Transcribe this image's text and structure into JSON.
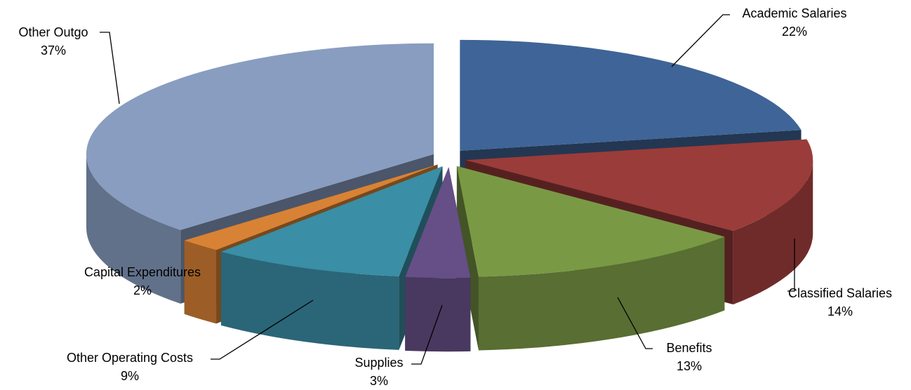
{
  "chart_data": {
    "type": "pie",
    "style": "3d-exploded",
    "title": "",
    "slices": [
      {
        "name": "Academic Salaries",
        "value": 22,
        "label": "22%",
        "color": "#3f6497"
      },
      {
        "name": "Classified Salaries",
        "value": 14,
        "label": "14%",
        "color": "#9a3c3a"
      },
      {
        "name": "Benefits",
        "value": 13,
        "label": "13%",
        "color": "#7a9945"
      },
      {
        "name": "Supplies",
        "value": 3,
        "label": "3%",
        "color": "#654f86"
      },
      {
        "name": "Other Operating Costs",
        "value": 9,
        "label": "9%",
        "color": "#3a8ea5"
      },
      {
        "name": "Capital Expenditures",
        "value": 2,
        "label": "2%",
        "color": "#d88235"
      },
      {
        "name": "Other Outgo",
        "value": 37,
        "label": "37%",
        "color": "#889dc0"
      }
    ],
    "legend": "none"
  }
}
